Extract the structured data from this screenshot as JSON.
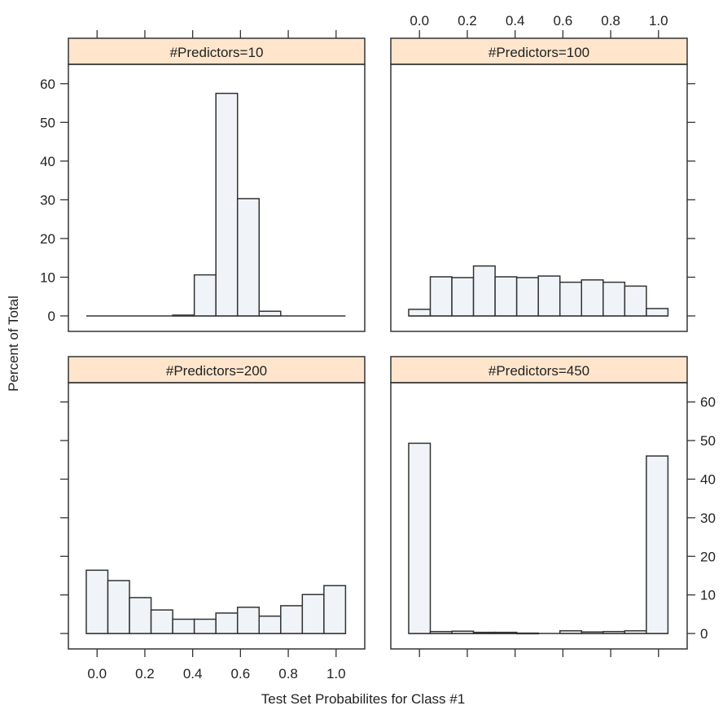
{
  "chart_data": {
    "type": "bar",
    "subtype": "lattice-histogram",
    "xlabel": "Test Set Probabilites for Class #1",
    "ylabel": "Percent of Total",
    "xlim": [
      -0.12,
      1.12
    ],
    "ylim": [
      -4,
      65
    ],
    "x_ticks": [
      0.0,
      0.2,
      0.4,
      0.6,
      0.8,
      1.0
    ],
    "x_tick_labels": [
      "0.0",
      "0.2",
      "0.4",
      "0.6",
      "0.8",
      "1.0"
    ],
    "y_ticks": [
      0,
      10,
      20,
      30,
      40,
      50,
      60
    ],
    "y_tick_labels": [
      "0",
      "10",
      "20",
      "30",
      "40",
      "50",
      "60"
    ],
    "bin_start": -0.0452,
    "bin_width": 0.0904,
    "panels": [
      {
        "strip_label": "#Predictors=10",
        "position": "top-left",
        "values": [
          0,
          0,
          0,
          0,
          0.2,
          10.6,
          57.5,
          30.3,
          1.2,
          0,
          0,
          0
        ]
      },
      {
        "strip_label": "#Predictors=100",
        "position": "top-right",
        "values": [
          1.7,
          10.1,
          9.9,
          12.9,
          10.1,
          9.9,
          10.3,
          8.7,
          9.3,
          8.7,
          7.7,
          1.9
        ]
      },
      {
        "strip_label": "#Predictors=200",
        "position": "bottom-left",
        "values": [
          16.4,
          13.7,
          9.3,
          6.1,
          3.7,
          3.7,
          5.3,
          6.8,
          4.5,
          7.2,
          10.1,
          12.4
        ]
      },
      {
        "strip_label": "#Predictors=450",
        "position": "bottom-right",
        "values": [
          49.3,
          0.5,
          0.6,
          0.3,
          0.3,
          0.1,
          0,
          0.7,
          0.4,
          0.5,
          0.7,
          46.0
        ]
      }
    ],
    "grid": false,
    "legend": "none"
  },
  "colors": {
    "strip": "#FFE5CC",
    "bar_fill": "#F0F4F8",
    "stroke": "#333333"
  }
}
